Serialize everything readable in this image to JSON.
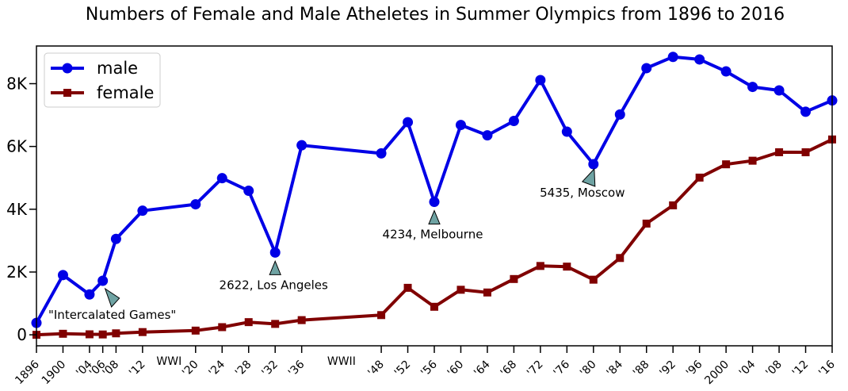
{
  "chart_data": {
    "type": "line",
    "title": "Numbers of Female and Male Atheletes in Summer Olympics from 1896 to 2016",
    "xlabel": "",
    "ylabel": "",
    "xlim": [
      1896,
      2016
    ],
    "ylim": [
      -350,
      9200
    ],
    "grid": false,
    "legend_position": "top-left",
    "x_ticks": [
      {
        "x": 1896,
        "label": "1896"
      },
      {
        "x": 1900,
        "label": "1900"
      },
      {
        "x": 1904,
        "label": "'04"
      },
      {
        "x": 1906,
        "label": "'06"
      },
      {
        "x": 1908,
        "label": "'08"
      },
      {
        "x": 1912,
        "label": "'12"
      },
      {
        "x": 1920,
        "label": "'20"
      },
      {
        "x": 1924,
        "label": "'24"
      },
      {
        "x": 1928,
        "label": "'28"
      },
      {
        "x": 1932,
        "label": "'32"
      },
      {
        "x": 1936,
        "label": "'36"
      },
      {
        "x": 1948,
        "label": "'48"
      },
      {
        "x": 1952,
        "label": "'52"
      },
      {
        "x": 1956,
        "label": "'56"
      },
      {
        "x": 1960,
        "label": "'60"
      },
      {
        "x": 1964,
        "label": "'64"
      },
      {
        "x": 1968,
        "label": "'68"
      },
      {
        "x": 1972,
        "label": "'72"
      },
      {
        "x": 1976,
        "label": "'76"
      },
      {
        "x": 1980,
        "label": "'80"
      },
      {
        "x": 1984,
        "label": "'84"
      },
      {
        "x": 1988,
        "label": "'88"
      },
      {
        "x": 1992,
        "label": "'92"
      },
      {
        "x": 1996,
        "label": "'96"
      },
      {
        "x": 2000,
        "label": "2000"
      },
      {
        "x": 2004,
        "label": "'04"
      },
      {
        "x": 2008,
        "label": "'08"
      },
      {
        "x": 2012,
        "label": "'12"
      },
      {
        "x": 2016,
        "label": "'16"
      }
    ],
    "y_ticks": [
      {
        "y": 0,
        "label": "0"
      },
      {
        "y": 2000,
        "label": "2K"
      },
      {
        "y": 4000,
        "label": "4K"
      },
      {
        "y": 6000,
        "label": "6K"
      },
      {
        "y": 8000,
        "label": "8K"
      }
    ],
    "era_labels": [
      {
        "x": 1916,
        "label": "WWI"
      },
      {
        "x": 1942,
        "label": "WWII"
      }
    ],
    "series": [
      {
        "name": "male",
        "color": "#0000e6",
        "marker": "circle",
        "points": [
          {
            "x": 1896,
            "y": 380
          },
          {
            "x": 1900,
            "y": 1903
          },
          {
            "x": 1904,
            "y": 1285
          },
          {
            "x": 1906,
            "y": 1722
          },
          {
            "x": 1908,
            "y": 3054
          },
          {
            "x": 1912,
            "y": 3953
          },
          {
            "x": 1920,
            "y": 4158
          },
          {
            "x": 1924,
            "y": 4989
          },
          {
            "x": 1928,
            "y": 4588
          },
          {
            "x": 1932,
            "y": 2622
          },
          {
            "x": 1936,
            "y": 6038
          },
          {
            "x": 1948,
            "y": 5780
          },
          {
            "x": 1952,
            "y": 6773
          },
          {
            "x": 1956,
            "y": 4234
          },
          {
            "x": 1960,
            "y": 6684
          },
          {
            "x": 1964,
            "y": 6354
          },
          {
            "x": 1968,
            "y": 6811
          },
          {
            "x": 1972,
            "y": 8115
          },
          {
            "x": 1976,
            "y": 6470
          },
          {
            "x": 1980,
            "y": 5435
          },
          {
            "x": 1984,
            "y": 7018
          },
          {
            "x": 1988,
            "y": 8494
          },
          {
            "x": 1992,
            "y": 8853
          },
          {
            "x": 1996,
            "y": 8772
          },
          {
            "x": 2000,
            "y": 8390
          },
          {
            "x": 2004,
            "y": 7897
          },
          {
            "x": 2008,
            "y": 7786
          },
          {
            "x": 2012,
            "y": 7105
          },
          {
            "x": 2016,
            "y": 7465
          }
        ]
      },
      {
        "name": "female",
        "color": "#800000",
        "marker": "square",
        "points": [
          {
            "x": 1896,
            "y": 0
          },
          {
            "x": 1900,
            "y": 33
          },
          {
            "x": 1904,
            "y": 16
          },
          {
            "x": 1906,
            "y": 11
          },
          {
            "x": 1908,
            "y": 47
          },
          {
            "x": 1912,
            "y": 87
          },
          {
            "x": 1920,
            "y": 134
          },
          {
            "x": 1924,
            "y": 244
          },
          {
            "x": 1928,
            "y": 404
          },
          {
            "x": 1932,
            "y": 347
          },
          {
            "x": 1936,
            "y": 468
          },
          {
            "x": 1948,
            "y": 628
          },
          {
            "x": 1952,
            "y": 1497
          },
          {
            "x": 1956,
            "y": 893
          },
          {
            "x": 1960,
            "y": 1435
          },
          {
            "x": 1964,
            "y": 1348
          },
          {
            "x": 1968,
            "y": 1777
          },
          {
            "x": 1972,
            "y": 2193
          },
          {
            "x": 1976,
            "y": 2172
          },
          {
            "x": 1980,
            "y": 1756
          },
          {
            "x": 1984,
            "y": 2447
          },
          {
            "x": 1988,
            "y": 3543
          },
          {
            "x": 1992,
            "y": 4124
          },
          {
            "x": 1996,
            "y": 5008
          },
          {
            "x": 2000,
            "y": 5431
          },
          {
            "x": 2004,
            "y": 5546
          },
          {
            "x": 2008,
            "y": 5816
          },
          {
            "x": 2012,
            "y": 5815
          },
          {
            "x": 2016,
            "y": 6223
          }
        ]
      }
    ],
    "annotations": [
      {
        "text": "\"Intercalated Games\"",
        "x": 1906,
        "y": 1722
      },
      {
        "text": "2622, Los Angeles",
        "x": 1932,
        "y": 2622
      },
      {
        "text": "4234, Melbourne",
        "x": 1956,
        "y": 4234
      },
      {
        "text": "5435, Moscow",
        "x": 1980,
        "y": 5435
      }
    ],
    "annotation_arrow_color": "#6fa3a3"
  }
}
